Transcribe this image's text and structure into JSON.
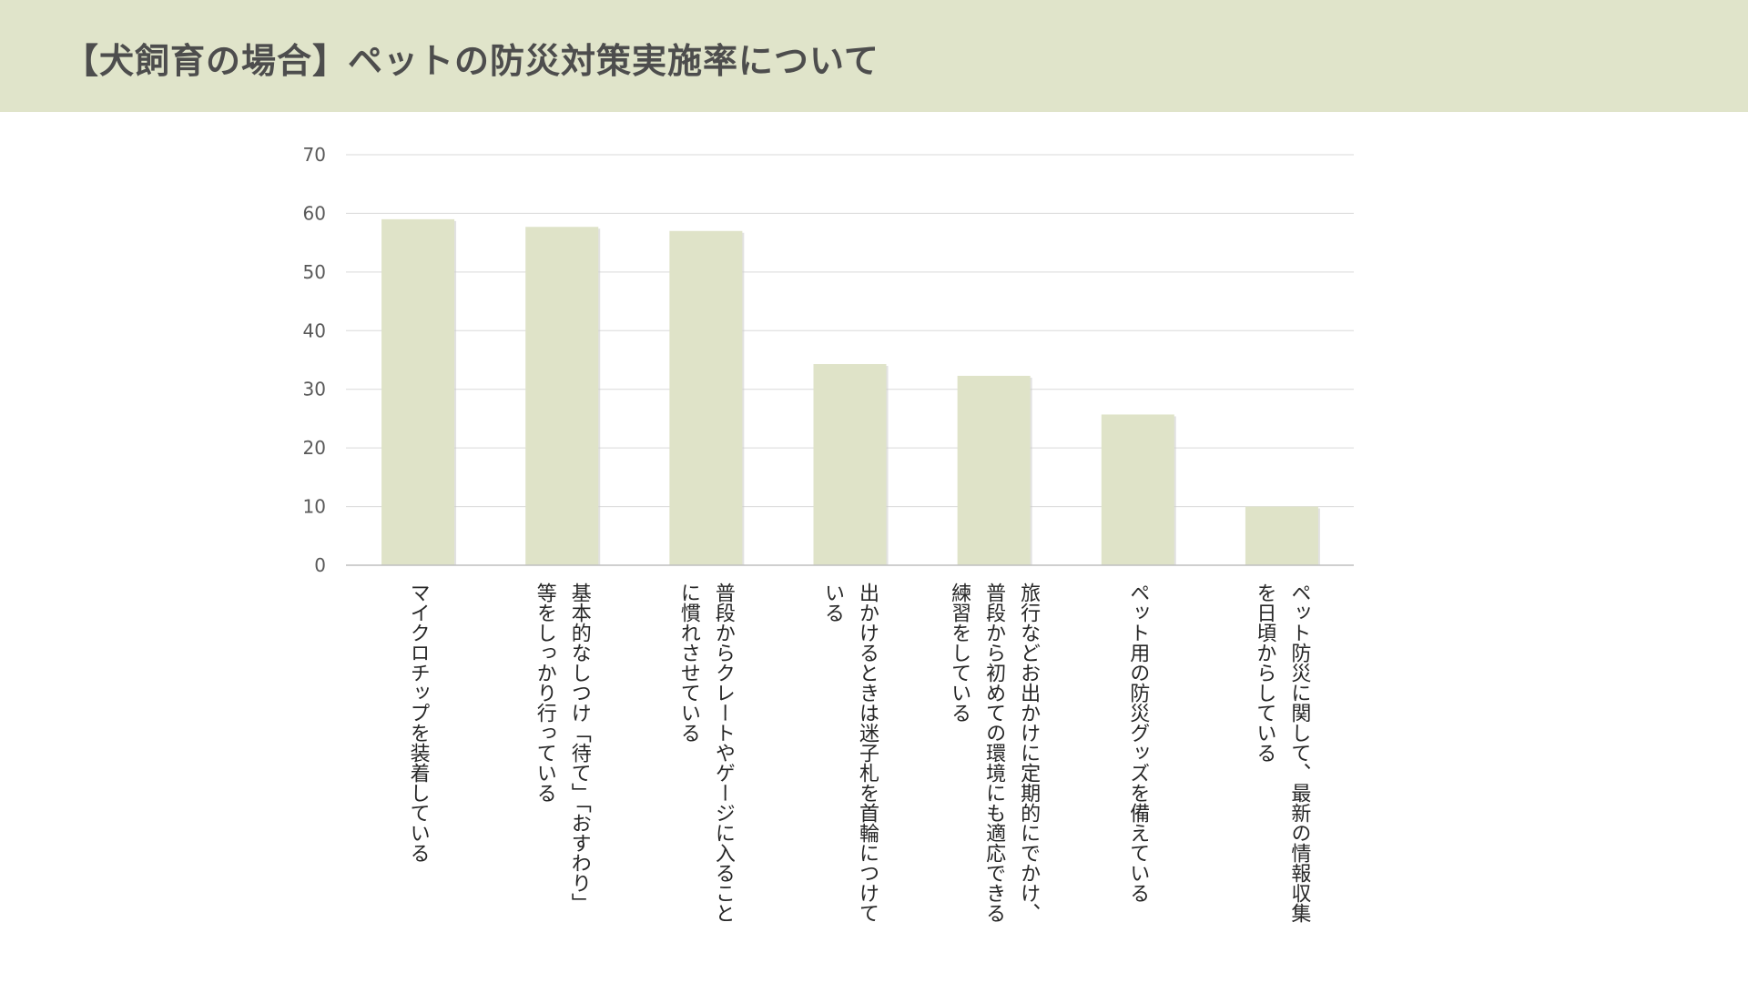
{
  "header": {
    "title": "【犬飼育の場合】ペットの防災対策実施率について"
  },
  "colors": {
    "header_bg": "#e0e4ca",
    "bar_fill": "#dfe3c8",
    "grid": "#d9d9d9",
    "tick_text": "#595959"
  },
  "chart_data": {
    "type": "bar",
    "title": "",
    "xlabel": "",
    "ylabel": "",
    "ylim": [
      0,
      70
    ],
    "yticks": [
      0,
      10,
      20,
      30,
      40,
      50,
      60,
      70
    ],
    "grid": true,
    "legend": "none",
    "categories": [
      [
        "マイクロチップを装着している"
      ],
      [
        "基本的なしつけ「待て」「おすわり」",
        "等をしっかり行っている"
      ],
      [
        "普段からクレートやゲージに入ること",
        "に慣れさせている"
      ],
      [
        "出かけるときは迷子札を首輪につけて",
        "いる"
      ],
      [
        "旅行などお出かけに定期的にでかけ、",
        "普段から初めての環境にも適応できる",
        "練習をしている"
      ],
      [
        "ペット用の防災グッズを備えている"
      ],
      [
        "ペット防災に関して、最新の情報収集",
        "を日頃からしている"
      ]
    ],
    "values": [
      59,
      57.7,
      57,
      34.3,
      32.3,
      25.7,
      10
    ]
  }
}
